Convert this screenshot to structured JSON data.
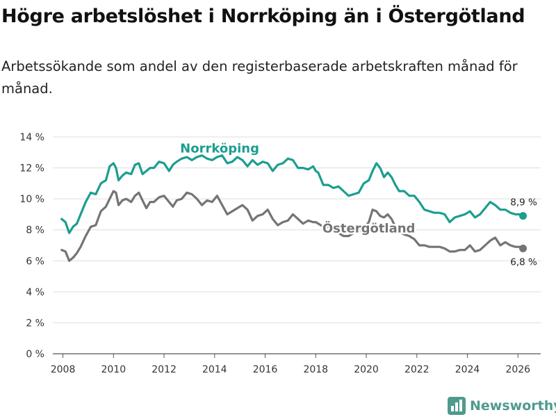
{
  "title": "Högre arbetslöshet i Norrköping än i Östergötland",
  "subtitle": "Arbetssökande som andel av den registerbaserade arbetskraften månad för månad.",
  "brand": "Newsworthy",
  "colors": {
    "norrkoping": "#1b9e8f",
    "ostergotland": "#747474",
    "grid": "#dddddd",
    "brand": "#4f9a8e"
  },
  "chart_data": {
    "type": "line",
    "title": "Högre arbetslöshet i Norrköping än i Östergötland",
    "xlabel": "",
    "ylabel": "",
    "xlim": [
      2007.6,
      2026.9
    ],
    "ylim": [
      0,
      14
    ],
    "x_ticks": [
      {
        "value": 2008,
        "label": "2008"
      },
      {
        "value": 2010,
        "label": "2010"
      },
      {
        "value": 2012,
        "label": "2012"
      },
      {
        "value": 2014,
        "label": "2014"
      },
      {
        "value": 2016,
        "label": "2016"
      },
      {
        "value": 2018,
        "label": "2018"
      },
      {
        "value": 2020,
        "label": "2020"
      },
      {
        "value": 2022,
        "label": "2022"
      },
      {
        "value": 2024,
        "label": "2024"
      },
      {
        "value": 2026,
        "label": "2026"
      }
    ],
    "y_ticks": [
      {
        "value": 0,
        "label": "0 %"
      },
      {
        "value": 2,
        "label": "2 %"
      },
      {
        "value": 4,
        "label": "4 %"
      },
      {
        "value": 6,
        "label": "6 %"
      },
      {
        "value": 8,
        "label": "8 %"
      },
      {
        "value": 10,
        "label": "10 %"
      },
      {
        "value": 12,
        "label": "12 %"
      },
      {
        "value": 14,
        "label": "14 %"
      }
    ],
    "series": [
      {
        "name": "Norrköping",
        "label": "Norrköping",
        "color": "#1b9e8f",
        "end_label": "8,9 %",
        "x": [
          2007.95,
          2008.1,
          2008.25,
          2008.4,
          2008.55,
          2008.7,
          2008.9,
          2009.1,
          2009.3,
          2009.5,
          2009.7,
          2009.85,
          2010.0,
          2010.1,
          2010.2,
          2010.35,
          2010.5,
          2010.7,
          2010.85,
          2011.0,
          2011.15,
          2011.3,
          2011.45,
          2011.6,
          2011.8,
          2012.0,
          2012.2,
          2012.35,
          2012.5,
          2012.7,
          2012.9,
          2013.1,
          2013.3,
          2013.5,
          2013.7,
          2013.9,
          2014.1,
          2014.3,
          2014.5,
          2014.7,
          2014.9,
          2015.1,
          2015.3,
          2015.5,
          2015.7,
          2015.9,
          2016.1,
          2016.3,
          2016.5,
          2016.7,
          2016.9,
          2017.1,
          2017.3,
          2017.5,
          2017.7,
          2017.9,
          2018.0,
          2018.1,
          2018.3,
          2018.5,
          2018.7,
          2018.9,
          2019.1,
          2019.3,
          2019.5,
          2019.7,
          2019.9,
          2020.1,
          2020.25,
          2020.4,
          2020.55,
          2020.7,
          2020.85,
          2021.0,
          2021.15,
          2021.3,
          2021.5,
          2021.7,
          2021.9,
          2022.1,
          2022.3,
          2022.5,
          2022.7,
          2022.9,
          2023.1,
          2023.3,
          2023.5,
          2023.7,
          2023.9,
          2024.1,
          2024.3,
          2024.5,
          2024.7,
          2024.9,
          2025.1,
          2025.3,
          2025.5,
          2025.7,
          2025.9,
          2026.05,
          2026.2
        ],
        "y": [
          8.7,
          8.5,
          7.8,
          8.2,
          8.4,
          9.0,
          9.8,
          10.4,
          10.3,
          11.0,
          11.2,
          12.1,
          12.3,
          12.0,
          11.2,
          11.5,
          11.7,
          11.6,
          12.2,
          12.3,
          11.6,
          11.8,
          12.0,
          12.0,
          12.4,
          12.3,
          11.8,
          12.2,
          12.4,
          12.6,
          12.7,
          12.5,
          12.7,
          12.8,
          12.6,
          12.5,
          12.7,
          12.8,
          12.3,
          12.4,
          12.7,
          12.5,
          12.1,
          12.5,
          12.2,
          12.4,
          12.3,
          11.8,
          12.2,
          12.3,
          12.6,
          12.5,
          12.0,
          12.0,
          11.9,
          12.1,
          11.8,
          11.7,
          10.9,
          10.9,
          10.7,
          10.8,
          10.5,
          10.2,
          10.3,
          10.4,
          11.0,
          11.2,
          11.8,
          12.3,
          12.0,
          11.4,
          11.7,
          11.4,
          10.9,
          10.5,
          10.5,
          10.2,
          10.2,
          9.8,
          9.3,
          9.2,
          9.1,
          9.1,
          9.0,
          8.5,
          8.8,
          8.9,
          9.0,
          9.2,
          8.8,
          9.0,
          9.4,
          9.8,
          9.6,
          9.3,
          9.3,
          9.1,
          9.0,
          9.0,
          8.9
        ]
      },
      {
        "name": "Östergötland",
        "label": "Östergötland",
        "color": "#747474",
        "end_label": "6,8 %",
        "x": [
          2007.95,
          2008.1,
          2008.25,
          2008.4,
          2008.55,
          2008.7,
          2008.9,
          2009.1,
          2009.3,
          2009.5,
          2009.7,
          2009.85,
          2010.0,
          2010.1,
          2010.2,
          2010.35,
          2010.5,
          2010.7,
          2010.85,
          2011.0,
          2011.15,
          2011.3,
          2011.45,
          2011.6,
          2011.8,
          2012.0,
          2012.2,
          2012.35,
          2012.5,
          2012.7,
          2012.9,
          2013.1,
          2013.3,
          2013.5,
          2013.7,
          2013.9,
          2014.1,
          2014.3,
          2014.5,
          2014.7,
          2014.9,
          2015.1,
          2015.3,
          2015.5,
          2015.7,
          2015.9,
          2016.1,
          2016.3,
          2016.5,
          2016.7,
          2016.9,
          2017.1,
          2017.3,
          2017.5,
          2017.7,
          2017.9,
          2018.0,
          2018.1,
          2018.3,
          2018.5,
          2018.7,
          2018.9,
          2019.1,
          2019.3,
          2019.5,
          2019.7,
          2019.9,
          2020.1,
          2020.25,
          2020.4,
          2020.55,
          2020.7,
          2020.85,
          2021.0,
          2021.15,
          2021.3,
          2021.5,
          2021.7,
          2021.9,
          2022.1,
          2022.3,
          2022.5,
          2022.7,
          2022.9,
          2023.1,
          2023.3,
          2023.5,
          2023.7,
          2023.9,
          2024.1,
          2024.3,
          2024.5,
          2024.7,
          2024.9,
          2025.1,
          2025.3,
          2025.5,
          2025.7,
          2025.9,
          2026.05,
          2026.2
        ],
        "y": [
          6.7,
          6.6,
          6.0,
          6.2,
          6.5,
          6.9,
          7.6,
          8.2,
          8.3,
          9.2,
          9.5,
          10.0,
          10.5,
          10.4,
          9.6,
          9.9,
          10.0,
          9.8,
          10.2,
          10.4,
          9.9,
          9.4,
          9.8,
          9.8,
          10.1,
          10.2,
          9.8,
          9.5,
          9.9,
          10.0,
          10.4,
          10.3,
          10.0,
          9.6,
          9.9,
          9.8,
          10.2,
          9.6,
          9.0,
          9.2,
          9.4,
          9.6,
          9.3,
          8.6,
          8.9,
          9.0,
          9.3,
          8.7,
          8.3,
          8.5,
          8.6,
          9.0,
          8.7,
          8.4,
          8.6,
          8.5,
          8.5,
          8.4,
          8.2,
          8.2,
          8.0,
          7.8,
          7.6,
          7.6,
          7.8,
          7.9,
          8.1,
          8.5,
          9.3,
          9.2,
          8.9,
          8.8,
          9.0,
          8.7,
          8.2,
          7.9,
          7.7,
          7.6,
          7.4,
          7.0,
          7.0,
          6.9,
          6.9,
          6.9,
          6.8,
          6.6,
          6.6,
          6.7,
          6.7,
          7.0,
          6.6,
          6.7,
          7.0,
          7.3,
          7.5,
          7.0,
          7.2,
          7.0,
          6.9,
          6.9,
          6.8
        ]
      }
    ]
  }
}
